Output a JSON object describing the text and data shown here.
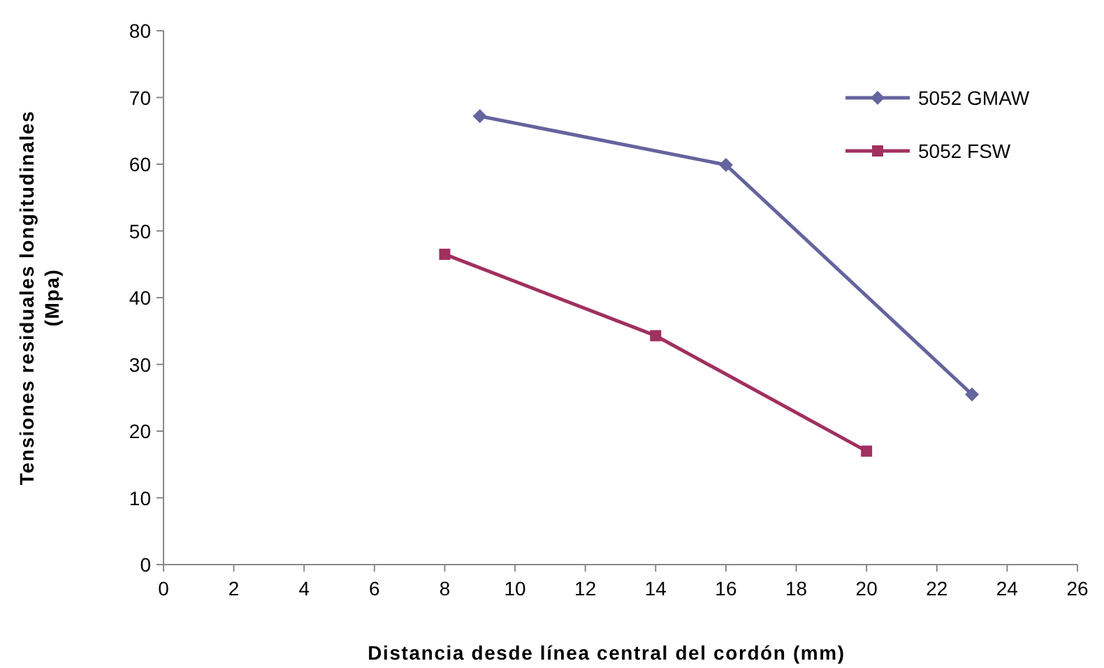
{
  "chart_data": {
    "type": "line",
    "xlabel": "Distancia desde línea central del cordón (mm)",
    "ylabel": "Tensiones residuales longitudinales\n(Mpa)",
    "xlim": [
      0,
      26
    ],
    "xticks": [
      0,
      2,
      4,
      6,
      8,
      10,
      12,
      14,
      16,
      18,
      20,
      22,
      24,
      26
    ],
    "ylim": [
      0,
      80
    ],
    "yticks": [
      0,
      10,
      20,
      30,
      40,
      50,
      60,
      70,
      80
    ],
    "grid": false,
    "legend": "top right",
    "series": [
      {
        "name": "5052 GMAW",
        "color": "#64649e",
        "marker": "diamond",
        "x": [
          9,
          16,
          23
        ],
        "values": [
          67.2,
          59.9,
          25.5
        ]
      },
      {
        "name": "5052 FSW",
        "color": "#a0305f",
        "marker": "square",
        "x": [
          8,
          14,
          20
        ],
        "values": [
          46.5,
          34.3,
          17.0
        ]
      }
    ]
  }
}
